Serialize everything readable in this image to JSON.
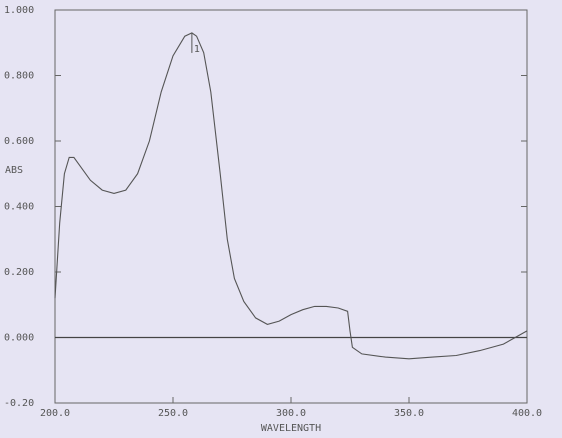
{
  "chart_data": {
    "type": "line",
    "x_label": "WAVELENGTH",
    "y_label": "ABS",
    "x": [
      200,
      202,
      204,
      206,
      208,
      210,
      215,
      220,
      225,
      230,
      235,
      240,
      245,
      250,
      255,
      258,
      260,
      263,
      266,
      270,
      273,
      276,
      280,
      285,
      290,
      295,
      300,
      305,
      310,
      315,
      320,
      324,
      325,
      326,
      330,
      340,
      350,
      360,
      370,
      380,
      390,
      395,
      400
    ],
    "series": [
      {
        "color": "#555555",
        "values": [
          0.12,
          0.35,
          0.5,
          0.55,
          0.55,
          0.53,
          0.48,
          0.45,
          0.44,
          0.45,
          0.5,
          0.6,
          0.75,
          0.86,
          0.92,
          0.93,
          0.92,
          0.87,
          0.75,
          0.5,
          0.3,
          0.18,
          0.11,
          0.06,
          0.04,
          0.05,
          0.07,
          0.085,
          0.095,
          0.095,
          0.09,
          0.08,
          0.02,
          -0.03,
          -0.05,
          -0.06,
          -0.065,
          -0.06,
          -0.055,
          -0.04,
          -0.02,
          0.0,
          0.02
        ]
      }
    ],
    "xlim": [
      200,
      400
    ],
    "xticks": [
      {
        "value": 200,
        "label": "200.0"
      },
      {
        "value": 250,
        "label": "250.0"
      },
      {
        "value": 300,
        "label": "300.0"
      },
      {
        "value": 350,
        "label": "350.0"
      },
      {
        "value": 400,
        "label": "400.0"
      }
    ],
    "ylim": [
      -0.2,
      1.0
    ],
    "yticks": [
      {
        "value": -0.2,
        "label": "-0.20"
      },
      {
        "value": 0,
        "label": "0.000"
      },
      {
        "value": 0.2,
        "label": "0.200"
      },
      {
        "value": 0.4,
        "label": "0.400"
      },
      {
        "value": 0.6,
        "label": "0.600"
      },
      {
        "value": 0.8,
        "label": "0.800"
      },
      {
        "value": 1.0,
        "label": "1.000"
      }
    ],
    "annotations": [
      {
        "text": "1",
        "x": 258
      }
    ]
  }
}
